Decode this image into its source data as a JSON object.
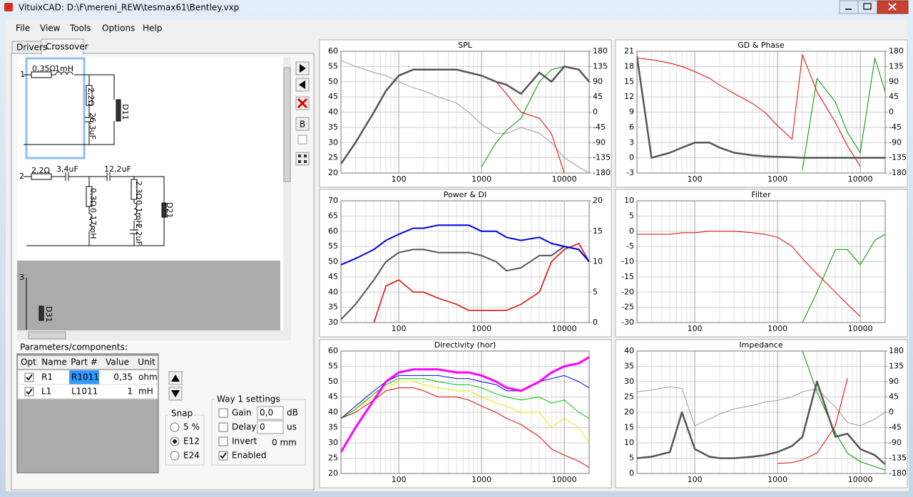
{
  "window": {
    "title": "VituixCAD: D:\\F\\mereni_REW\\tesmax61\\Bentley.vxp"
  },
  "menu": [
    "File",
    "View",
    "Tools",
    "Options",
    "Help"
  ],
  "tabs": [
    "Drivers",
    "Crossover"
  ],
  "active_tab": 1,
  "schematic": {
    "labels": [
      "1",
      "0,35Ω",
      "1mH",
      "2,2Ω",
      "26,3uF",
      "D11",
      "2",
      "2,2Ω",
      "3,4uF",
      "12,2uF",
      "0,3Ω",
      "0,17mH",
      "2,3Ω",
      "0,1mH",
      "2,2uF",
      "D21",
      "3",
      "D31"
    ]
  },
  "toolbar": {
    "button": "B"
  },
  "parameters": {
    "title": "Parameters/components:",
    "columns": [
      "Opt",
      "Name",
      "Part #",
      "Value",
      "Unit"
    ],
    "rows": [
      {
        "opt": true,
        "name": "R1",
        "part": "R1011",
        "value": "0,35",
        "unit": "ohm"
      },
      {
        "opt": true,
        "name": "L1",
        "part": "L1011",
        "value": "1",
        "unit": "mH"
      }
    ]
  },
  "snap": {
    "title": "Snap",
    "options": [
      "5 %",
      "E12",
      "E24"
    ],
    "selected": 1
  },
  "way": {
    "title": "Way 1 settings",
    "fields": [
      {
        "label": "Gain",
        "checked": false,
        "value": "0,0",
        "unit": "dB"
      },
      {
        "label": "Delay",
        "checked": false,
        "value": "0",
        "unit": "us"
      },
      {
        "label": "Invert",
        "checked": false,
        "value": "0 mm"
      },
      {
        "label": "Enabled",
        "checked": true
      }
    ]
  },
  "chart_data": [
    {
      "type": "line",
      "title": "SPL",
      "xlog": true,
      "grid": true,
      "minor_grid": true,
      "x": [
        20,
        30,
        50,
        70,
        100,
        150,
        200,
        300,
        500,
        700,
        1000,
        1500,
        2000,
        3000,
        5000,
        7000,
        10000,
        15000,
        20000
      ],
      "xlim": [
        20,
        20000
      ],
      "xticks": [
        100,
        1000,
        10000
      ],
      "ylim": [
        20,
        60
      ],
      "yticks": [
        20,
        25,
        30,
        35,
        40,
        45,
        50,
        55,
        60
      ],
      "y2lim": [
        -180,
        180
      ],
      "y2ticks": [
        -180,
        -135,
        -90,
        -45,
        0,
        45,
        90,
        135,
        180
      ],
      "series": [
        {
          "color": "#999999",
          "width": 1,
          "values": [
            57,
            55,
            53,
            52,
            50,
            48,
            47,
            45,
            43,
            40,
            36,
            33,
            33,
            35,
            33,
            30,
            25,
            22,
            20
          ]
        },
        {
          "color": "#e00000",
          "width": 1,
          "values": [
            null,
            null,
            null,
            null,
            null,
            null,
            null,
            null,
            null,
            null,
            52,
            50,
            46,
            40,
            38,
            33,
            20,
            null,
            null
          ]
        },
        {
          "color": "#009000",
          "width": 1,
          "values": [
            null,
            null,
            null,
            null,
            null,
            null,
            null,
            null,
            null,
            null,
            22,
            30,
            34,
            38,
            50,
            54,
            55,
            54,
            50
          ]
        },
        {
          "color": "#555555",
          "width": 2.5,
          "values": [
            23,
            30,
            40,
            47,
            52,
            54,
            54,
            54,
            54,
            53,
            52,
            50,
            49,
            46,
            53,
            50,
            55,
            54,
            50
          ]
        }
      ]
    },
    {
      "type": "line",
      "title": "GD & Phase",
      "xlog": true,
      "grid": true,
      "minor_grid": true,
      "x": [
        20,
        30,
        50,
        70,
        100,
        150,
        200,
        300,
        500,
        700,
        1000,
        1500,
        2000,
        3000,
        5000,
        7000,
        10000,
        15000,
        20000
      ],
      "xlim": [
        20,
        20000
      ],
      "xticks": [
        100,
        1000,
        10000
      ],
      "ylim": [
        -3,
        21
      ],
      "yticks": [
        -3,
        0,
        3,
        6,
        9,
        12,
        15,
        18,
        21
      ],
      "y2lim": [
        -180,
        180
      ],
      "y2ticks": [
        -180,
        -135,
        -90,
        -45,
        0,
        45,
        90,
        135,
        180
      ],
      "series": [
        {
          "color": "#e00000",
          "width": 1,
          "axis": "y2",
          "values": [
            160,
            155,
            145,
            135,
            120,
            100,
            80,
            55,
            25,
            0,
            -40,
            -80,
            170,
            60,
            -30,
            -100,
            -160,
            null,
            null
          ]
        },
        {
          "color": "#009000",
          "width": 1,
          "axis": "y2",
          "values": [
            null,
            null,
            null,
            null,
            null,
            null,
            null,
            null,
            null,
            null,
            null,
            null,
            -170,
            100,
            30,
            -60,
            -120,
            160,
            60
          ]
        },
        {
          "color": "#555555",
          "width": 2.5,
          "values": [
            20,
            0,
            1,
            2,
            3,
            3,
            2,
            1,
            0.5,
            0.3,
            0.2,
            0.1,
            0,
            0,
            0,
            0,
            0,
            0,
            0
          ]
        }
      ]
    },
    {
      "type": "line",
      "title": "Power & DI",
      "xlog": true,
      "grid": true,
      "minor_grid": true,
      "x": [
        20,
        30,
        50,
        70,
        100,
        150,
        200,
        300,
        500,
        700,
        1000,
        1500,
        2000,
        3000,
        5000,
        7000,
        10000,
        15000,
        20000
      ],
      "xlim": [
        20,
        20000
      ],
      "xticks": [
        100,
        1000,
        10000
      ],
      "ylim": [
        30,
        70
      ],
      "yticks": [
        30,
        35,
        40,
        45,
        50,
        55,
        60,
        65,
        70
      ],
      "y2lim": [
        0,
        20
      ],
      "y2ticks": [
        0,
        5,
        10,
        15,
        20
      ],
      "series": [
        {
          "color": "#e00000",
          "width": 1.5,
          "axis": "y2",
          "values": [
            null,
            null,
            0,
            6,
            7,
            5,
            5,
            4,
            3,
            2,
            2,
            2,
            2,
            3,
            5,
            10,
            12,
            13,
            10
          ]
        },
        {
          "color": "#555555",
          "width": 2,
          "values": [
            31,
            36,
            44,
            50,
            53,
            54,
            54,
            53,
            53,
            53,
            52,
            50,
            47,
            48,
            52,
            52,
            55,
            54,
            50
          ]
        },
        {
          "color": "#0000e0",
          "width": 2,
          "values": [
            49,
            51,
            54,
            57,
            59,
            61,
            61,
            62,
            62,
            62,
            60,
            60,
            58,
            57,
            58,
            56,
            55,
            54,
            50
          ]
        }
      ]
    },
    {
      "type": "line",
      "title": "Filter",
      "xlog": true,
      "grid": true,
      "minor_grid": true,
      "x": [
        20,
        30,
        50,
        70,
        100,
        150,
        200,
        300,
        500,
        700,
        1000,
        1500,
        2000,
        3000,
        5000,
        7000,
        10000,
        15000,
        20000
      ],
      "xlim": [
        20,
        20000
      ],
      "xticks": [
        100,
        1000,
        10000
      ],
      "ylim": [
        -30,
        10
      ],
      "yticks": [
        -30,
        -25,
        -20,
        -15,
        -10,
        -5,
        0,
        5,
        10
      ],
      "series": [
        {
          "color": "#e00000",
          "width": 1,
          "values": [
            -1,
            -1,
            -1,
            -0.5,
            -0.5,
            0,
            0,
            0,
            -0.5,
            -1,
            -2,
            -5,
            -9,
            -14,
            -20,
            -24,
            -28,
            null,
            null
          ]
        },
        {
          "color": "#009000",
          "width": 1,
          "values": [
            null,
            null,
            null,
            null,
            null,
            null,
            null,
            null,
            null,
            null,
            null,
            null,
            -30,
            -20,
            -6,
            -6,
            -11,
            -3,
            -1
          ]
        }
      ]
    },
    {
      "type": "line",
      "title": "Directivity (hor)",
      "xlog": true,
      "grid": true,
      "minor_grid": true,
      "x": [
        20,
        30,
        50,
        70,
        100,
        150,
        200,
        300,
        500,
        700,
        1000,
        1500,
        2000,
        3000,
        5000,
        7000,
        10000,
        15000,
        20000
      ],
      "xlim": [
        20,
        20000
      ],
      "xticks": [
        100,
        1000,
        10000
      ],
      "ylim": [
        20,
        60
      ],
      "yticks": [
        20,
        25,
        30,
        35,
        40,
        45,
        50,
        55,
        60
      ],
      "series": [
        {
          "color": "#e00000",
          "width": 1,
          "values": [
            38,
            40,
            44,
            47,
            48,
            48,
            47,
            45,
            45,
            44,
            42,
            40,
            38,
            36,
            32,
            28,
            26,
            24,
            22
          ]
        },
        {
          "color": "#e8e800",
          "width": 1,
          "values": [
            38,
            41,
            45,
            48,
            50,
            50,
            49,
            48,
            47,
            47,
            45,
            43,
            42,
            40,
            40,
            35,
            38,
            35,
            30
          ]
        },
        {
          "color": "#00c000",
          "width": 1,
          "values": [
            38,
            41,
            46,
            49,
            51,
            51,
            51,
            50,
            49,
            49,
            48,
            46,
            45,
            44,
            45,
            43,
            44,
            40,
            38
          ]
        },
        {
          "color": "#0000e0",
          "width": 1,
          "values": [
            38,
            42,
            47,
            50,
            52,
            52,
            52,
            52,
            51,
            51,
            50,
            49,
            47,
            47,
            50,
            51,
            52,
            50,
            48
          ]
        },
        {
          "color": "#ff00ff",
          "width": 3,
          "values": [
            27,
            35,
            44,
            50,
            53,
            54,
            54,
            54,
            53,
            53,
            52,
            50,
            48,
            47,
            50,
            53,
            55,
            56,
            58
          ]
        }
      ]
    },
    {
      "type": "line",
      "title": "Impedance",
      "xlog": true,
      "grid": true,
      "minor_grid": true,
      "x": [
        20,
        30,
        50,
        70,
        100,
        150,
        200,
        300,
        500,
        700,
        1000,
        1500,
        2000,
        3000,
        5000,
        7000,
        10000,
        15000,
        20000
      ],
      "xlim": [
        20,
        20000
      ],
      "xticks": [
        100,
        1000,
        10000
      ],
      "ylim": [
        0,
        40
      ],
      "yticks": [
        0,
        5,
        10,
        15,
        20,
        25,
        30,
        35,
        40
      ],
      "y2lim": [
        -180,
        180
      ],
      "y2ticks": [
        -180,
        -135,
        -90,
        -45,
        0,
        45,
        90,
        135,
        180
      ],
      "series": [
        {
          "color": "#999999",
          "width": 1,
          "axis": "y2",
          "values": [
            60,
            65,
            75,
            70,
            -40,
            -20,
            -5,
            10,
            20,
            30,
            35,
            45,
            60,
            70,
            15,
            -30,
            -40,
            -20,
            0
          ]
        },
        {
          "color": "#e00000",
          "width": 1,
          "axis": "y2",
          "values": [
            null,
            null,
            null,
            null,
            null,
            null,
            null,
            null,
            null,
            null,
            -150,
            -148,
            -140,
            -120,
            -40,
            100,
            null,
            null,
            null
          ]
        },
        {
          "color": "#009000",
          "width": 1,
          "axis": "y2",
          "values": [
            null,
            null,
            null,
            null,
            null,
            null,
            null,
            null,
            null,
            null,
            null,
            null,
            180,
            60,
            -60,
            -120,
            -145,
            -160,
            -170
          ]
        },
        {
          "color": "#555555",
          "width": 2.5,
          "values": [
            5,
            5.5,
            7,
            20,
            8,
            5.5,
            5,
            5,
            5.5,
            6,
            7,
            9,
            12,
            30,
            12,
            13,
            8,
            6,
            3
          ]
        }
      ]
    }
  ]
}
